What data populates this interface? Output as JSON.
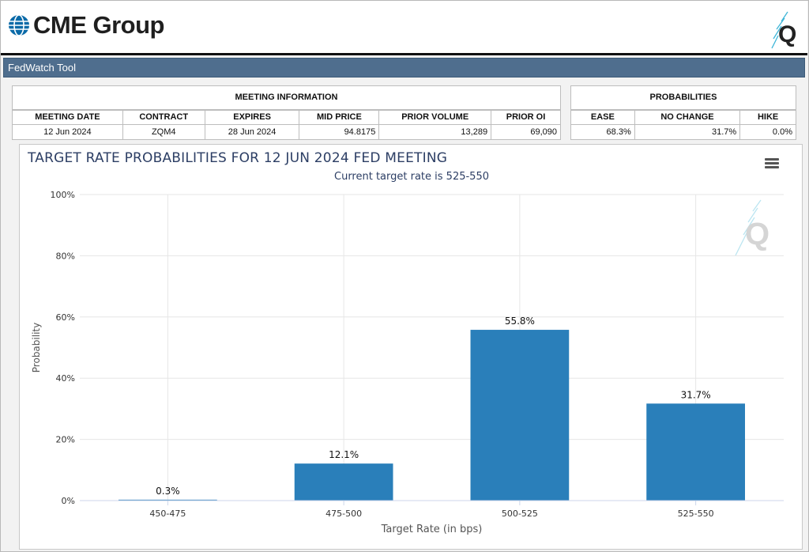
{
  "header": {
    "logo_text": "CME Group",
    "logo_icon": "cme-globe-icon",
    "quikstrike_icon": "quikstrike-q-icon"
  },
  "toolbar": {
    "title": "FedWatch Tool"
  },
  "meeting_info": {
    "title": "MEETING INFORMATION",
    "columns": [
      "MEETING DATE",
      "CONTRACT",
      "EXPIRES",
      "MID PRICE",
      "PRIOR VOLUME",
      "PRIOR OI"
    ],
    "row": [
      "12 Jun 2024",
      "ZQM4",
      "28 Jun 2024",
      "94.8175",
      "13,289",
      "69,090"
    ]
  },
  "probabilities": {
    "title": "PROBABILITIES",
    "columns": [
      "EASE",
      "NO CHANGE",
      "HIKE"
    ],
    "row": [
      "68.3%",
      "31.7%",
      "0.0%"
    ]
  },
  "colors": {
    "bar": "#2a7fba",
    "title": "#2c3e64",
    "toolbar": "#4f6e8e"
  },
  "chart_data": {
    "type": "bar",
    "title": "TARGET RATE PROBABILITIES FOR 12 JUN 2024 FED MEETING",
    "subtitle": "Current target rate is 525-550",
    "xlabel": "Target Rate (in bps)",
    "ylabel": "Probability",
    "categories": [
      "450-475",
      "475-500",
      "500-525",
      "525-550"
    ],
    "values": [
      0.3,
      12.1,
      55.8,
      31.7
    ],
    "data_labels": [
      "0.3%",
      "12.1%",
      "55.8%",
      "31.7%"
    ],
    "ylim": [
      0,
      100
    ],
    "yticks": [
      0,
      20,
      40,
      60,
      80,
      100
    ],
    "ytick_labels": [
      "0%",
      "20%",
      "40%",
      "60%",
      "80%",
      "100%"
    ],
    "grid": true,
    "legend": "none"
  }
}
